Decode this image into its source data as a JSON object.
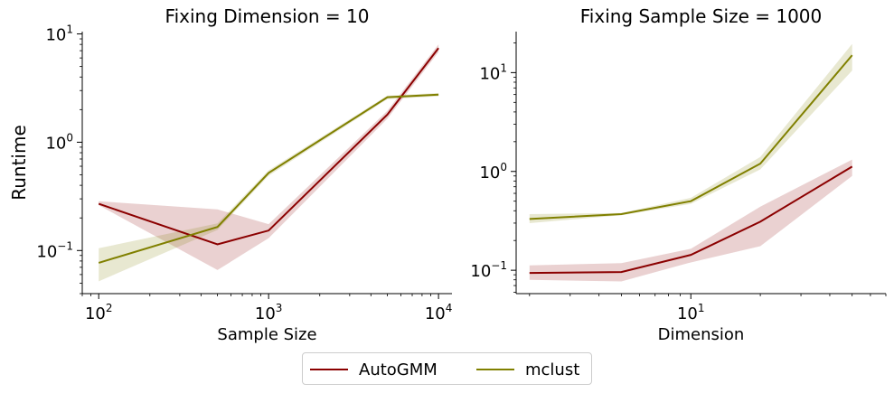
{
  "colors": {
    "autogmm": "#8b0000",
    "mclust": "#808000"
  },
  "legend": {
    "placement": "bottom-center",
    "items": [
      {
        "label": "AutoGMM",
        "color": "#8b0000"
      },
      {
        "label": "mclust",
        "color": "#808000"
      }
    ]
  },
  "chart_data": [
    {
      "type": "line",
      "title": "Fixing Dimension = 10",
      "xlabel": "Sample Size",
      "ylabel": "Runtime",
      "xscale": "log",
      "yscale": "log",
      "xlim": [
        80,
        12000
      ],
      "ylim": [
        0.04,
        10.5
      ],
      "xticks": [
        {
          "value": 100,
          "base": "10",
          "exp": "2"
        },
        {
          "value": 1000,
          "base": "10",
          "exp": "3"
        },
        {
          "value": 10000,
          "base": "10",
          "exp": "4"
        }
      ],
      "yticks": [
        {
          "value": 0.1,
          "base": "10",
          "exp": "−1"
        },
        {
          "value": 1,
          "base": "10",
          "exp": "0"
        },
        {
          "value": 10,
          "base": "10",
          "exp": "1"
        }
      ],
      "x": [
        100,
        500,
        1000,
        5000,
        10000
      ],
      "series": [
        {
          "name": "AutoGMM",
          "values": [
            0.27,
            0.114,
            0.153,
            1.8,
            7.4
          ],
          "lower": [
            0.262,
            0.066,
            0.13,
            1.65,
            6.8
          ],
          "upper": [
            0.285,
            0.24,
            0.175,
            1.95,
            8.0
          ]
        },
        {
          "name": "mclust",
          "values": [
            0.077,
            0.165,
            0.52,
            2.6,
            2.75
          ],
          "lower": [
            0.052,
            0.155,
            0.49,
            2.5,
            2.65
          ],
          "upper": [
            0.105,
            0.178,
            0.55,
            2.7,
            2.85
          ]
        }
      ],
      "grid": false
    },
    {
      "type": "line",
      "title": "Fixing Sample Size = 1000",
      "xlabel": "Dimension",
      "ylabel": "",
      "xscale": "log",
      "yscale": "log",
      "xlim": [
        1.75,
        70
      ],
      "ylim": [
        0.058,
        26
      ],
      "xticks": [
        {
          "value": 10,
          "base": "10",
          "exp": "1"
        }
      ],
      "yticks": [
        {
          "value": 0.1,
          "base": "10",
          "exp": "−1"
        },
        {
          "value": 1,
          "base": "10",
          "exp": "0"
        },
        {
          "value": 10,
          "base": "10",
          "exp": "1"
        }
      ],
      "x": [
        2,
        5,
        10,
        20,
        50
      ],
      "series": [
        {
          "name": "AutoGMM",
          "values": [
            0.094,
            0.096,
            0.143,
            0.31,
            1.12
          ],
          "lower": [
            0.08,
            0.077,
            0.12,
            0.175,
            0.9
          ],
          "upper": [
            0.112,
            0.118,
            0.165,
            0.44,
            1.32
          ]
        },
        {
          "name": "mclust",
          "values": [
            0.33,
            0.37,
            0.5,
            1.2,
            15.0
          ],
          "lower": [
            0.3,
            0.36,
            0.47,
            1.05,
            10.5
          ],
          "upper": [
            0.37,
            0.38,
            0.54,
            1.4,
            19.5
          ]
        }
      ],
      "grid": false
    }
  ]
}
